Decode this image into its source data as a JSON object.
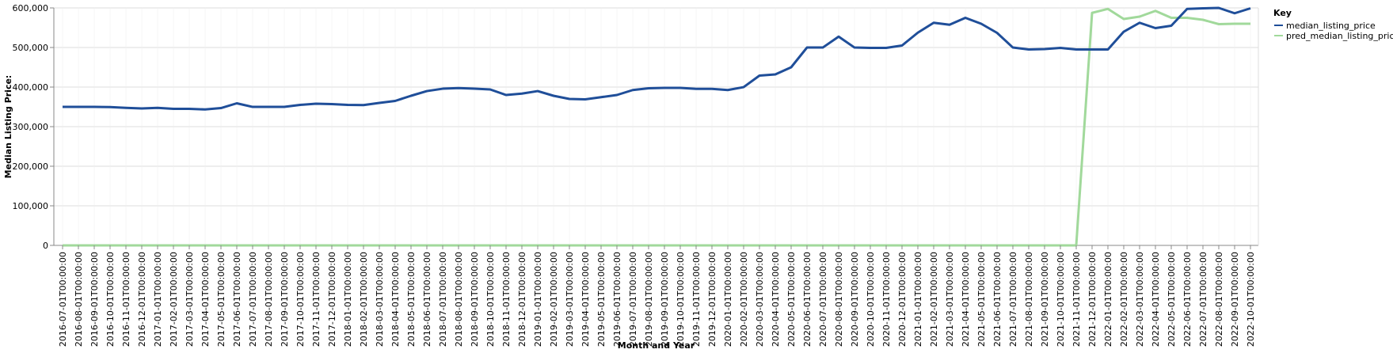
{
  "chart_data": {
    "type": "line",
    "xlabel": "Month and Year",
    "ylabel": "Median Listing Price:",
    "ylim": [
      0,
      600000
    ],
    "yticks": [
      "0",
      "100,000",
      "200,000",
      "300,000",
      "400,000",
      "500,000",
      "600,000"
    ],
    "grid": true,
    "legend": {
      "title": "Key",
      "placement": "right"
    },
    "x": [
      "2016-07-01T00:00:00",
      "2016-08-01T00:00:00",
      "2016-09-01T00:00:00",
      "2016-10-01T00:00:00",
      "2016-11-01T00:00:00",
      "2016-12-01T00:00:00",
      "2017-01-01T00:00:00",
      "2017-02-01T00:00:00",
      "2017-03-01T00:00:00",
      "2017-04-01T00:00:00",
      "2017-05-01T00:00:00",
      "2017-06-01T00:00:00",
      "2017-07-01T00:00:00",
      "2017-08-01T00:00:00",
      "2017-09-01T00:00:00",
      "2017-10-01T00:00:00",
      "2017-11-01T00:00:00",
      "2017-12-01T00:00:00",
      "2018-01-01T00:00:00",
      "2018-02-01T00:00:00",
      "2018-03-01T00:00:00",
      "2018-04-01T00:00:00",
      "2018-05-01T00:00:00",
      "2018-06-01T00:00:00",
      "2018-07-01T00:00:00",
      "2018-08-01T00:00:00",
      "2018-09-01T00:00:00",
      "2018-10-01T00:00:00",
      "2018-11-01T00:00:00",
      "2018-12-01T00:00:00",
      "2019-01-01T00:00:00",
      "2019-02-01T00:00:00",
      "2019-03-01T00:00:00",
      "2019-04-01T00:00:00",
      "2019-05-01T00:00:00",
      "2019-06-01T00:00:00",
      "2019-07-01T00:00:00",
      "2019-08-01T00:00:00",
      "2019-09-01T00:00:00",
      "2019-10-01T00:00:00",
      "2019-11-01T00:00:00",
      "2019-12-01T00:00:00",
      "2020-01-01T00:00:00",
      "2020-02-01T00:00:00",
      "2020-03-01T00:00:00",
      "2020-04-01T00:00:00",
      "2020-05-01T00:00:00",
      "2020-06-01T00:00:00",
      "2020-07-01T00:00:00",
      "2020-08-01T00:00:00",
      "2020-09-01T00:00:00",
      "2020-10-01T00:00:00",
      "2020-11-01T00:00:00",
      "2020-12-01T00:00:00",
      "2021-01-01T00:00:00",
      "2021-02-01T00:00:00",
      "2021-03-01T00:00:00",
      "2021-04-01T00:00:00",
      "2021-05-01T00:00:00",
      "2021-06-01T00:00:00",
      "2021-07-01T00:00:00",
      "2021-08-01T00:00:00",
      "2021-09-01T00:00:00",
      "2021-10-01T00:00:00",
      "2021-11-01T00:00:00",
      "2021-12-01T00:00:00",
      "2022-01-01T00:00:00",
      "2022-02-01T00:00:00",
      "2022-03-01T00:00:00",
      "2022-04-01T00:00:00",
      "2022-05-01T00:00:00",
      "2022-06-01T00:00:00",
      "2022-07-01T00:00:00",
      "2022-08-01T00:00:00",
      "2022-09-01T00:00:00",
      "2022-10-01T00:00:00"
    ],
    "series": [
      {
        "name": "median_listing_price",
        "color": "#1f4e99",
        "values": [
          349900,
          349900,
          350000,
          349500,
          347500,
          345900,
          347500,
          344900,
          345000,
          343500,
          346900,
          359000,
          349900,
          349900,
          349900,
          355000,
          357950,
          357000,
          355000,
          354500,
          360000,
          365000,
          378000,
          389900,
          395900,
          397500,
          396000,
          394000,
          380000,
          383500,
          389900,
          378000,
          370000,
          369000,
          374500,
          380000,
          392500,
          397000,
          398000,
          398000,
          395500,
          395500,
          392500,
          399900,
          429000,
          432000,
          450000,
          499900,
          499900,
          527500,
          499900,
          499000,
          499000,
          505000,
          537500,
          562500,
          557500,
          575000,
          560000,
          537000,
          499900,
          495000,
          495900,
          498900,
          495000,
          495000,
          495000,
          539900,
          562500,
          549000,
          555000,
          597500,
          599000,
          600000,
          586500,
          599000
        ]
      },
      {
        "name": "pred_median_listing_price",
        "color": "#a1d99b",
        "values": [
          0,
          0,
          0,
          0,
          0,
          0,
          0,
          0,
          0,
          0,
          0,
          0,
          0,
          0,
          0,
          0,
          0,
          0,
          0,
          0,
          0,
          0,
          0,
          0,
          0,
          0,
          0,
          0,
          0,
          0,
          0,
          0,
          0,
          0,
          0,
          0,
          0,
          0,
          0,
          0,
          0,
          0,
          0,
          0,
          0,
          0,
          0,
          0,
          0,
          0,
          0,
          0,
          0,
          0,
          0,
          0,
          0,
          0,
          0,
          0,
          0,
          0,
          0,
          0,
          0,
          587500,
          597500,
          572000,
          578000,
          592500,
          575000,
          575000,
          570000,
          559000,
          560000,
          560000
        ]
      }
    ]
  }
}
